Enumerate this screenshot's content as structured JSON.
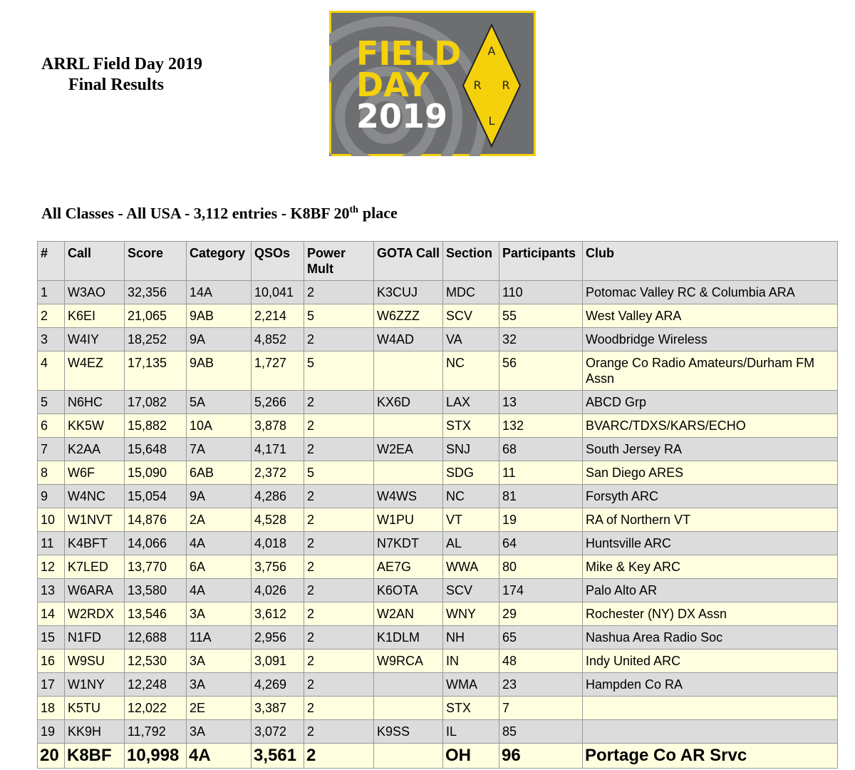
{
  "header": {
    "title": "ARRL Field Day 2019",
    "subtitle": "Final Results"
  },
  "logo": {
    "line1": "FIELD",
    "line2": "DAY",
    "line3": "2019",
    "emblem": [
      "A",
      "R",
      "R",
      "L"
    ]
  },
  "summary": {
    "parts": [
      "All Classes - All USA - 3,112 entries - K8BF 20",
      "th",
      "place"
    ]
  },
  "table": {
    "headers": [
      "#",
      "Call",
      "Score",
      "Category",
      "QSOs",
      "Power Mult",
      "GOTA Call",
      "Section",
      "Participants",
      "Club"
    ],
    "rows": [
      [
        "1",
        "W3AO",
        "32,356",
        "14A",
        "10,041",
        "2",
        "K3CUJ",
        "MDC",
        "110",
        "Potomac Valley RC & Columbia ARA"
      ],
      [
        "2",
        "K6EI",
        "21,065",
        "9AB",
        "2,214",
        "5",
        "W6ZZZ",
        "SCV",
        "55",
        "West Valley ARA"
      ],
      [
        "3",
        "W4IY",
        "18,252",
        "9A",
        "4,852",
        "2",
        "W4AD",
        "VA",
        "32",
        "Woodbridge Wireless"
      ],
      [
        "4",
        "W4EZ",
        "17,135",
        "9AB",
        "1,727",
        "5",
        null,
        "NC",
        "56",
        "Orange Co Radio Amateurs/Durham FM Assn"
      ],
      [
        "5",
        "N6HC",
        "17,082",
        "5A",
        "5,266",
        "2",
        "KX6D",
        "LAX",
        "13",
        "ABCD Grp"
      ],
      [
        "6",
        "KK5W",
        "15,882",
        "10A",
        "3,878",
        "2",
        null,
        "STX",
        "132",
        "BVARC/TDXS/KARS/ECHO"
      ],
      [
        "7",
        "K2AA",
        "15,648",
        "7A",
        "4,171",
        "2",
        "W2EA",
        "SNJ",
        "68",
        "South Jersey RA"
      ],
      [
        "8",
        "W6F",
        "15,090",
        "6AB",
        "2,372",
        "5",
        null,
        "SDG",
        "11",
        "San Diego ARES"
      ],
      [
        "9",
        "W4NC",
        "15,054",
        "9A",
        "4,286",
        "2",
        "W4WS",
        "NC",
        "81",
        "Forsyth ARC"
      ],
      [
        "10",
        "W1NVT",
        "14,876",
        "2A",
        "4,528",
        "2",
        "W1PU",
        "VT",
        "19",
        "RA of Northern VT"
      ],
      [
        "11",
        "K4BFT",
        "14,066",
        "4A",
        "4,018",
        "2",
        "N7KDT",
        "AL",
        "64",
        "Huntsville ARC"
      ],
      [
        "12",
        "K7LED",
        "13,770",
        "6A",
        "3,756",
        "2",
        "AE7G",
        "WWA",
        "80",
        "Mike & Key ARC"
      ],
      [
        "13",
        "W6ARA",
        "13,580",
        "4A",
        "4,026",
        "2",
        "K6OTA",
        "SCV",
        "174",
        "Palo Alto AR"
      ],
      [
        "14",
        "W2RDX",
        "13,546",
        "3A",
        "3,612",
        "2",
        "W2AN",
        "WNY",
        "29",
        "Rochester (NY) DX Assn"
      ],
      [
        "15",
        "N1FD",
        "12,688",
        "11A",
        "2,956",
        "2",
        "K1DLM",
        "NH",
        "65",
        "Nashua Area Radio Soc"
      ],
      [
        "16",
        "W9SU",
        "12,530",
        "3A",
        "3,091",
        "2",
        "W9RCA",
        "IN",
        "48",
        "Indy United ARC"
      ],
      [
        "17",
        "W1NY",
        "12,248",
        "3A",
        "4,269",
        "2",
        null,
        "WMA",
        "23",
        "Hampden Co RA"
      ],
      [
        "18",
        "K5TU",
        "12,022",
        "2E",
        "3,387",
        "2",
        null,
        "STX",
        "7",
        null
      ],
      [
        "19",
        "KK9H",
        "11,792",
        "3A",
        "3,072",
        "2",
        "K9SS",
        "IL",
        "85",
        null
      ],
      [
        "20",
        "K8BF",
        "10,998",
        "4A",
        "3,561",
        "2",
        null,
        "OH",
        "96",
        "Portage Co AR Srvc"
      ]
    ]
  }
}
